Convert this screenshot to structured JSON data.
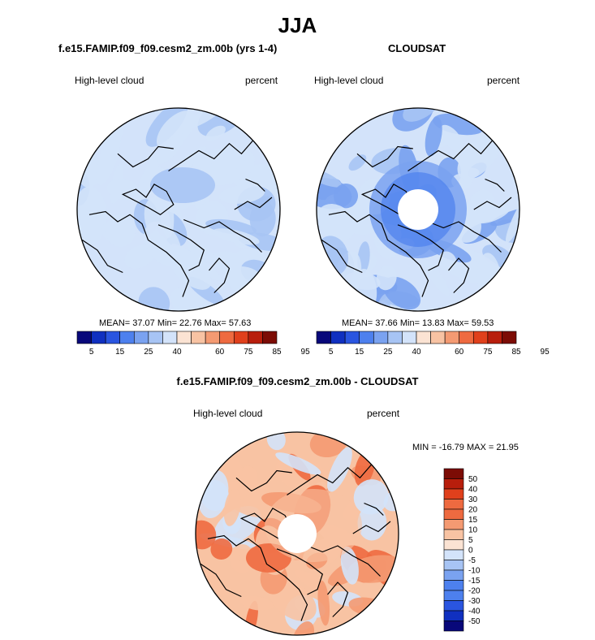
{
  "page": {
    "title": "JJA",
    "colors": {
      "seq": [
        "#08087a",
        "#1030c0",
        "#2a55e0",
        "#4d80ee",
        "#7aa2f0",
        "#a7c4f4",
        "#d3e3fa",
        "#fbe3d3",
        "#f8c3a3",
        "#f49a72",
        "#ee6a40",
        "#e0401c",
        "#b81e0c",
        "#7c0c05"
      ],
      "diff": [
        "#08087a",
        "#1030c0",
        "#2a55e0",
        "#4d80ee",
        "#7aa2f0",
        "#a7c4f4",
        "#d3e3fa",
        "#fbe3d3",
        "#f8c3a3",
        "#f49a72",
        "#ee6a40",
        "#e0401c",
        "#b81e0c",
        "#7c0c05"
      ],
      "coast": "#000000"
    }
  },
  "chart_data": [
    {
      "type": "heatmap",
      "projection": "north-polar-stereographic",
      "title": "f.e15.FAMIP.f09_f09.cesm2_zm.00b (yrs 1-4)",
      "left_label": "High-level cloud",
      "right_label": "percent",
      "stats": {
        "mean": "37.07",
        "min": "22.76",
        "max": "57.63",
        "text": "MEAN=  37.07  Min=  22.76  Max=  57.63"
      },
      "colorbar": {
        "orientation": "horizontal",
        "tick_labels": [
          "5",
          "15",
          "25",
          "40",
          "60",
          "75",
          "85",
          "95"
        ]
      },
      "field_levels": [
        -1,
        -1,
        -1,
        -2
      ]
    },
    {
      "type": "heatmap",
      "projection": "north-polar-stereographic",
      "title": "CLOUDSAT",
      "left_label": "High-level cloud",
      "right_label": "percent",
      "stats": {
        "mean": "37.66",
        "min": "13.83",
        "max": "59.53",
        "text": "MEAN=  37.66  Min=  13.83  Max=  59.53"
      },
      "colorbar": {
        "orientation": "horizontal",
        "tick_labels": [
          "5",
          "15",
          "25",
          "40",
          "60",
          "75",
          "85",
          "95"
        ]
      },
      "pole_hole": true,
      "field_levels": [
        -1,
        -2,
        -3,
        -1
      ]
    },
    {
      "type": "heatmap",
      "projection": "north-polar-stereographic",
      "title": "f.e15.FAMIP.f09_f09.cesm2_zm.00b - CLOUDSAT",
      "left_label": "High-level cloud",
      "right_label": "percent",
      "stats": {
        "min": "-16.79",
        "max": "21.95",
        "text": "MIN = -16.79 MAX =  21.95"
      },
      "colorbar": {
        "orientation": "vertical",
        "tick_labels": [
          "50",
          "40",
          "30",
          "20",
          "15",
          "10",
          "5",
          "0",
          "-5",
          "-10",
          "-15",
          "-20",
          "-30",
          "-40",
          "-50"
        ]
      },
      "pole_hole": true,
      "field_levels": [
        1,
        2,
        3,
        -1
      ]
    }
  ]
}
